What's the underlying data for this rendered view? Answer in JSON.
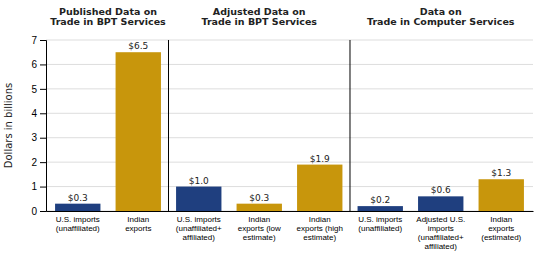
{
  "chart_data": {
    "type": "bar",
    "categories": [
      "U.S. imports\n(unaffiliated)",
      "Indian\nexports",
      "U.S. imports\n(unaffiliated+\naffiliated)",
      "Indian\nexports (low\nestimate)",
      "Indian\nexports (high\nestimate)",
      "U.S. imports\n(unaffiliated)",
      "Adjusted U.S.\nimports\n(unaffiliated+\naffiliated)",
      "Indian\nexports\n(estimated)"
    ],
    "values": [
      0.3,
      6.5,
      1.0,
      0.3,
      1.9,
      0.2,
      0.6,
      1.3
    ],
    "value_labels": [
      "$0.3",
      "$6.5",
      "$1.0",
      "$0.3",
      "$1.9",
      "$0.2",
      "$0.6",
      "$1.3"
    ],
    "colors": [
      "#1f3f7f",
      "#c8960c",
      "#1f3f7f",
      "#c8960c",
      "#c8960c",
      "#1f3f7f",
      "#1f3f7f",
      "#c8960c"
    ],
    "groups": [
      {
        "title": "Published Data on\nTrade in BPT Services",
        "n": 2
      },
      {
        "title": "Adjusted Data on\nTrade in BPT Services",
        "n": 3
      },
      {
        "title": "Data on\nTrade in Computer Services",
        "n": 3
      }
    ],
    "y_label": "Dollars in billions",
    "ylim": [
      0,
      7
    ],
    "yticks": [
      0,
      1,
      2,
      3,
      4,
      5,
      6,
      7
    ],
    "grid": true,
    "data_labels": true
  }
}
